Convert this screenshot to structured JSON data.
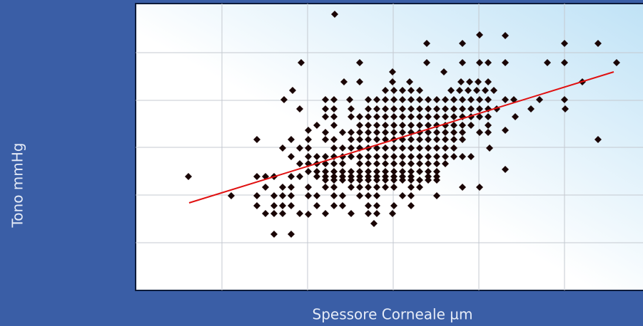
{
  "chart_data": {
    "type": "scatter",
    "x_label": "Spessore Corneale µm",
    "y_label": "Tono mmHg",
    "xlim": [
      0,
      711
    ],
    "ylim": [
      0,
      403
    ],
    "xticks": [
      121,
      241,
      361,
      481,
      601
    ],
    "yticks": [
      67,
      134,
      201,
      267,
      334
    ],
    "grid": true,
    "color": "#1a0505",
    "trendline": {
      "x": [
        75,
        670
      ],
      "y": [
        123,
        307
      ],
      "color": "#e01010"
    },
    "x": [
      279,
      482,
      518,
      408,
      458,
      601,
      648,
      232,
      314,
      408,
      458,
      482,
      494,
      518,
      577,
      601,
      674,
      360,
      432,
      292,
      314,
      360,
      384,
      456,
      468,
      480,
      494,
      626,
      220,
      350,
      362,
      374,
      386,
      398,
      442,
      454,
      466,
      478,
      490,
      502,
      208,
      266,
      278,
      300,
      326,
      338,
      350,
      362,
      374,
      386,
      398,
      410,
      422,
      434,
      446,
      458,
      470,
      482,
      494,
      518,
      530,
      566,
      601,
      230,
      266,
      278,
      302,
      326,
      338,
      350,
      362,
      374,
      386,
      398,
      410,
      422,
      434,
      446,
      458,
      470,
      482,
      494,
      506,
      554,
      602,
      266,
      278,
      302,
      314,
      326,
      338,
      350,
      362,
      374,
      386,
      398,
      410,
      422,
      434,
      446,
      458,
      470,
      482,
      494,
      532,
      254,
      278,
      314,
      326,
      338,
      350,
      362,
      374,
      386,
      398,
      410,
      422,
      434,
      446,
      458,
      470,
      494,
      242,
      518,
      266,
      290,
      302,
      314,
      326,
      338,
      350,
      362,
      374,
      386,
      398,
      410,
      422,
      434,
      446,
      458,
      482,
      494,
      170,
      218,
      242,
      266,
      278,
      302,
      314,
      326,
      338,
      350,
      362,
      374,
      386,
      398,
      410,
      422,
      434,
      446,
      458,
      648,
      206,
      230,
      242,
      278,
      290,
      302,
      314,
      326,
      338,
      350,
      362,
      374,
      386,
      398,
      410,
      422,
      434,
      446,
      496,
      218,
      242,
      254,
      266,
      278,
      290,
      302,
      314,
      326,
      338,
      350,
      362,
      374,
      386,
      398,
      410,
      422,
      434,
      446,
      458,
      470,
      230,
      242,
      254,
      266,
      278,
      290,
      314,
      326,
      338,
      350,
      362,
      374,
      386,
      398,
      410,
      422,
      434,
      518,
      242,
      254,
      266,
      278,
      290,
      302,
      314,
      326,
      338,
      350,
      362,
      374,
      386,
      398,
      410,
      422,
      74,
      170,
      182,
      194,
      218,
      230,
      254,
      266,
      278,
      290,
      302,
      314,
      326,
      338,
      350,
      362,
      374,
      386,
      410,
      422,
      266,
      278,
      290,
      302,
      314,
      326,
      338,
      350,
      362,
      374,
      386,
      398,
      410,
      422,
      182,
      206,
      218,
      242,
      266,
      278,
      302,
      314,
      326,
      338,
      350,
      362,
      386,
      398,
      458,
      482,
      134,
      170,
      194,
      206,
      218,
      242,
      254,
      278,
      290,
      314,
      326,
      338,
      374,
      386,
      422,
      170,
      194,
      206,
      218,
      254,
      278,
      290,
      326,
      338,
      362,
      386,
      182,
      194,
      206,
      230,
      266,
      302,
      326,
      338,
      360,
      242,
      334,
      194,
      218
    ],
    "values": [
      388,
      359,
      358,
      347,
      347,
      347,
      347,
      320,
      320,
      320,
      320,
      320,
      320,
      320,
      320,
      320,
      320,
      307,
      307,
      293,
      293,
      293,
      293,
      293,
      293,
      293,
      293,
      293,
      281,
      281,
      281,
      281,
      281,
      281,
      281,
      281,
      281,
      281,
      281,
      281,
      268,
      268,
      268,
      268,
      268,
      268,
      268,
      268,
      268,
      268,
      268,
      268,
      268,
      268,
      268,
      268,
      268,
      268,
      268,
      268,
      268,
      268,
      268,
      255,
      255,
      255,
      255,
      255,
      255,
      255,
      255,
      255,
      255,
      255,
      255,
      255,
      255,
      255,
      255,
      255,
      255,
      255,
      255,
      255,
      255,
      244,
      244,
      244,
      244,
      244,
      244,
      244,
      244,
      244,
      244,
      244,
      244,
      244,
      244,
      244,
      244,
      244,
      244,
      244,
      244,
      232,
      232,
      232,
      232,
      232,
      232,
      232,
      232,
      232,
      232,
      232,
      232,
      232,
      232,
      232,
      232,
      232,
      225,
      225,
      222,
      222,
      222,
      222,
      222,
      222,
      222,
      222,
      222,
      222,
      222,
      222,
      222,
      222,
      222,
      222,
      222,
      222,
      212,
      212,
      212,
      212,
      212,
      212,
      212,
      212,
      212,
      212,
      212,
      212,
      212,
      212,
      212,
      212,
      212,
      212,
      212,
      212,
      200,
      200,
      200,
      200,
      200,
      200,
      200,
      200,
      200,
      200,
      200,
      200,
      200,
      200,
      200,
      200,
      200,
      200,
      200,
      188,
      188,
      188,
      188,
      188,
      188,
      188,
      188,
      188,
      188,
      188,
      188,
      188,
      188,
      188,
      188,
      188,
      188,
      188,
      188,
      188,
      178,
      178,
      178,
      178,
      178,
      178,
      178,
      178,
      178,
      178,
      178,
      178,
      178,
      178,
      178,
      178,
      178,
      170,
      167,
      167,
      167,
      167,
      167,
      167,
      167,
      167,
      167,
      167,
      167,
      167,
      167,
      167,
      167,
      167,
      160,
      160,
      160,
      160,
      160,
      160,
      160,
      160,
      160,
      160,
      160,
      160,
      160,
      160,
      160,
      160,
      160,
      160,
      160,
      160,
      155,
      155,
      155,
      155,
      155,
      155,
      155,
      155,
      155,
      155,
      155,
      155,
      155,
      155,
      145,
      145,
      145,
      145,
      145,
      145,
      145,
      145,
      145,
      145,
      145,
      145,
      145,
      145,
      145,
      145,
      133,
      133,
      133,
      133,
      133,
      133,
      133,
      133,
      133,
      133,
      133,
      133,
      133,
      133,
      133,
      119,
      119,
      119,
      119,
      119,
      119,
      119,
      119,
      119,
      119,
      119,
      108,
      108,
      108,
      108,
      108,
      108,
      108,
      108,
      108,
      107,
      94,
      79,
      79
    ]
  }
}
